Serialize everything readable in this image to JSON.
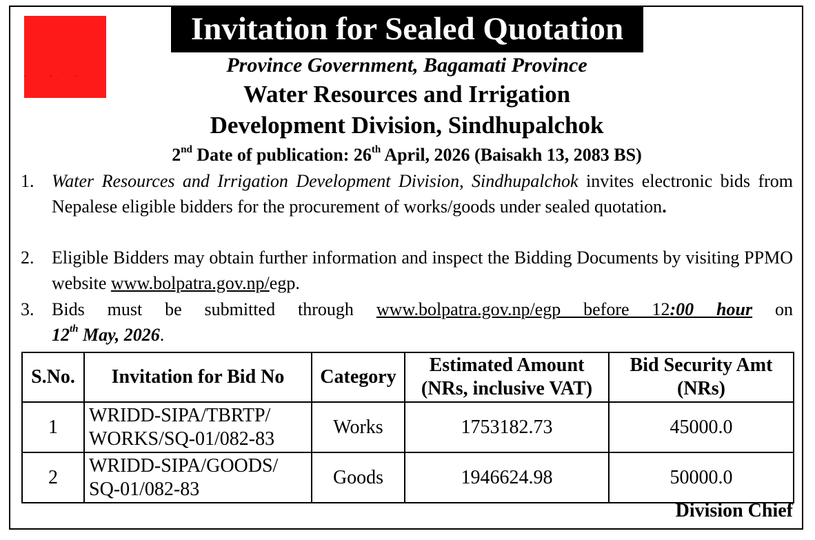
{
  "header": {
    "title": "Invitation for Sealed Quotation",
    "government": "Province Government, Bagamati Province",
    "division_line1": "Water Resources and Irrigation",
    "division_line2": "Development Division, Sindhupalchok",
    "pub_prefix": "2",
    "pub_prefix_sup": "nd",
    "pub_label": " Date of publication: 26",
    "pub_day_sup": "th",
    "pub_rest": " April, 2026 (Baisakh 13, 2083 BS)"
  },
  "paragraphs": {
    "p1": {
      "num": "1.",
      "italic": "Water Resources and Irrigation Development Division, Sindhupalchok",
      "text": " invites electronic bids from Nepalese eligible bidders for the procurement of works/goods under sealed quotation",
      "end": "."
    },
    "p2": {
      "num": "2.",
      "text": "Eligible Bidders may obtain further information and inspect the Bidding Documents by visiting PPMO website ",
      "link": "www.bolpatra.gov.np/",
      "after": "egp."
    },
    "p3": {
      "num": "3.",
      "text": "Bids must be submitted through ",
      "link": "www.bolpatra.gov.np/egp before 12",
      "time": ":00 hour",
      "after": " on",
      "date_day": "12",
      "date_sup": "th",
      "date_rest": " May, 2026",
      "end": "."
    }
  },
  "table": {
    "headers": {
      "sno": "S.No.",
      "bidno": "Invitation for Bid No",
      "category": "Category",
      "amount_l1": "Estimated Amount",
      "amount_l2": "(NRs, inclusive VAT)",
      "security_l1": "Bid Security Amt",
      "security_l2": "(NRs)"
    },
    "rows": [
      {
        "sno": "1",
        "bidno_l1": "WRIDD-SIPA/TBRTP/",
        "bidno_l2": "WORKS/SQ-01/082-83",
        "category": "Works",
        "amount": "1753182.73",
        "security": "45000.0"
      },
      {
        "sno": "2",
        "bidno_l1": "WRIDD-SIPA/GOODS/",
        "bidno_l2": "SQ-01/082-83",
        "category": "Goods",
        "amount": "1946624.98",
        "security": "50000.0"
      }
    ]
  },
  "signature": "Division Chief",
  "colors": {
    "logo": "#ff1a1a",
    "title_bg": "#000000",
    "title_text": "#ffffff"
  }
}
